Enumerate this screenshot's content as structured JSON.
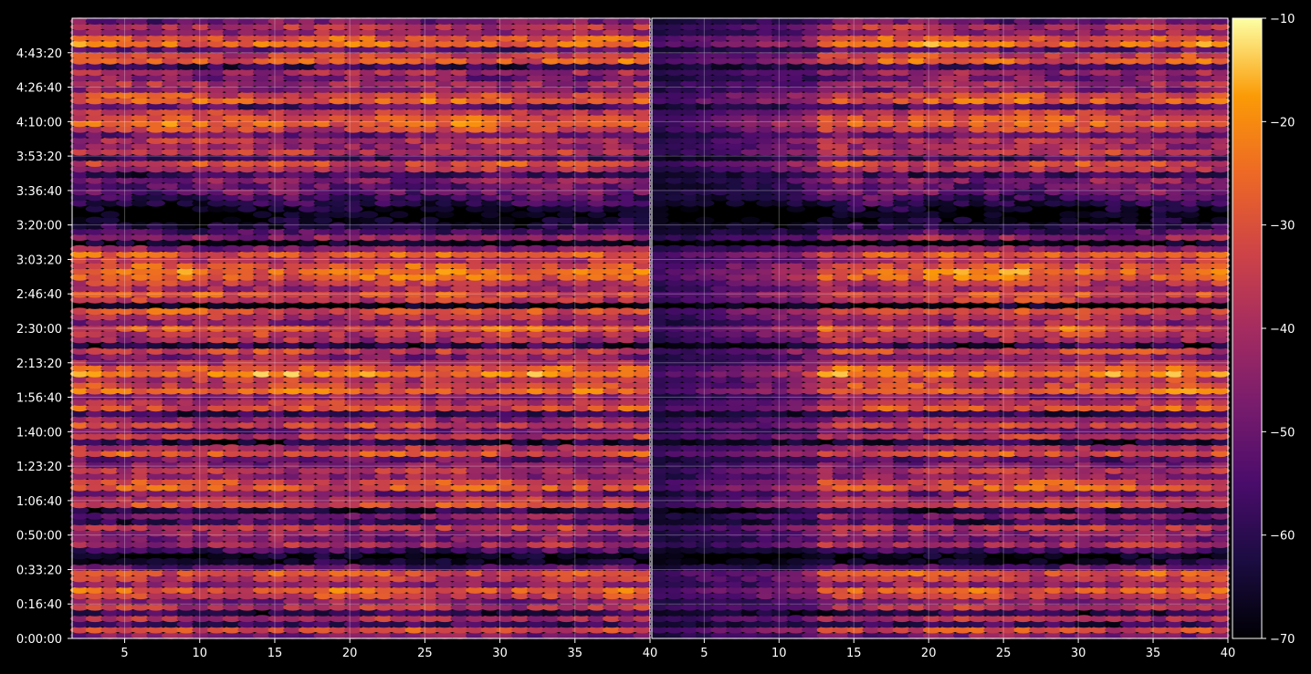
{
  "chart_data": {
    "type": "heatmap",
    "title": "",
    "xlabel": "",
    "ylabel": "",
    "panels": [
      {
        "name": "left-panel",
        "xlim": [
          1.5,
          40
        ],
        "xticks": [
          5,
          10,
          15,
          20,
          25,
          30,
          35,
          40
        ],
        "xtick_labels": [
          "5",
          "10",
          "15",
          "20",
          "25",
          "30",
          "35",
          "40"
        ]
      },
      {
        "name": "right-panel",
        "xlim": [
          1.5,
          40
        ],
        "xticks": [
          5,
          10,
          15,
          20,
          25,
          30,
          35,
          40
        ],
        "xtick_labels": [
          "5",
          "10",
          "15",
          "20",
          "25",
          "30",
          "35",
          "40"
        ]
      }
    ],
    "y_axis": {
      "unit": "seconds",
      "ylim": [
        0,
        18000
      ],
      "ticks": [
        0,
        1000,
        2000,
        3000,
        4000,
        5000,
        6000,
        7000,
        8000,
        9000,
        10000,
        11000,
        12000,
        13000,
        14000,
        15000,
        16000,
        17000
      ],
      "tick_labels": [
        "0:00:00",
        "0:16:40",
        "0:33:20",
        "0:50:00",
        "1:06:40",
        "1:23:20",
        "1:40:00",
        "1:56:40",
        "2:13:20",
        "2:30:00",
        "2:46:40",
        "3:03:20",
        "3:20:00",
        "3:36:40",
        "3:53:20",
        "4:10:00",
        "4:26:40",
        "4:43:20"
      ]
    },
    "colorbar": {
      "colormap": "inferno",
      "range": [
        -70,
        -10
      ],
      "ticks": [
        -70,
        -60,
        -50,
        -40,
        -30,
        -20,
        -10
      ],
      "tick_labels": [
        "−70",
        "−60",
        "−50",
        "−40",
        "−30",
        "−20",
        "−10"
      ]
    },
    "grid": true,
    "row_levels": [
      -48,
      -32,
      -58,
      -40,
      -60,
      -38,
      -46,
      -34,
      -28,
      -44,
      -36,
      -30,
      -52,
      -66,
      -70,
      -56,
      -40,
      -48,
      -44,
      -36,
      -58,
      -46,
      -62,
      -30,
      -38,
      -48,
      -28,
      -32,
      -44,
      -38,
      -46,
      -52,
      -30,
      -40,
      -62,
      -36,
      -50,
      -34,
      -44,
      -58,
      -30,
      -38,
      -46,
      -26,
      -32,
      -36,
      -22,
      -28,
      -40,
      -46,
      -34,
      -62,
      -40,
      -36,
      -28,
      -44,
      -38,
      -30,
      -70,
      -36,
      -30,
      -42,
      -36,
      -26,
      -24,
      -30,
      -38,
      -28,
      -46,
      -70,
      -44,
      -54,
      -62,
      -68,
      -70,
      -66,
      -60,
      -56,
      -50,
      -52,
      -46,
      -58,
      -38,
      -32,
      -56,
      -36,
      -42,
      -38,
      -50,
      -34,
      -26,
      -30,
      -36,
      -54,
      -28,
      -32,
      -46,
      -40,
      -48,
      -42,
      -58,
      -28,
      -34,
      -52,
      -24,
      -30,
      -44,
      -38,
      -50
    ],
    "right_attenuation_regions": [
      {
        "x_from": 1.5,
        "x_to": 13,
        "strength": 0.7
      }
    ]
  }
}
